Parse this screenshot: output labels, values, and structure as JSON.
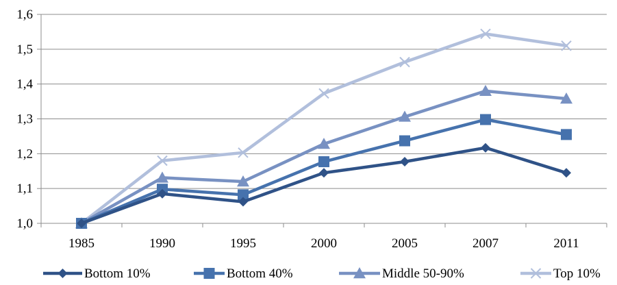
{
  "chart_data": {
    "type": "line",
    "categories": [
      "1985",
      "1990",
      "1995",
      "2000",
      "2005",
      "2007",
      "2011"
    ],
    "ylim": [
      1.0,
      1.6
    ],
    "yticks": [
      "1,0",
      "1,1",
      "1,2",
      "1,3",
      "1,4",
      "1,5",
      "1,6"
    ],
    "ytick_values": [
      1.0,
      1.1,
      1.2,
      1.3,
      1.4,
      1.5,
      1.6
    ],
    "grid": true,
    "legend_position": "bottom",
    "series": [
      {
        "name": "Bottom 10%",
        "marker": "diamond",
        "color": "#2f5287",
        "values": [
          1.0,
          1.085,
          1.062,
          1.145,
          1.177,
          1.217,
          1.145
        ]
      },
      {
        "name": "Bottom 40%",
        "marker": "square",
        "color": "#4672ad",
        "values": [
          1.0,
          1.098,
          1.082,
          1.177,
          1.237,
          1.298,
          1.255
        ]
      },
      {
        "name": "Middle 50-90%",
        "marker": "triangle",
        "color": "#7891c2",
        "values": [
          1.0,
          1.131,
          1.12,
          1.228,
          1.306,
          1.38,
          1.358
        ]
      },
      {
        "name": "Top 10%",
        "marker": "x",
        "color": "#b1bfdc",
        "values": [
          1.0,
          1.18,
          1.203,
          1.373,
          1.463,
          1.544,
          1.51
        ]
      }
    ]
  }
}
